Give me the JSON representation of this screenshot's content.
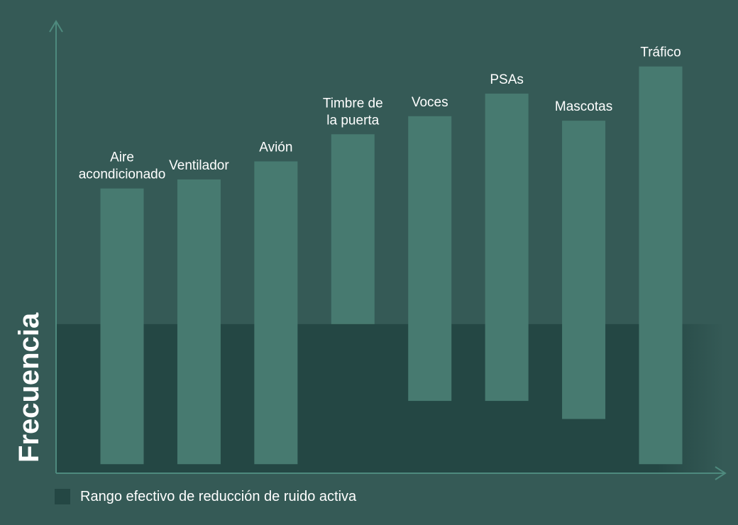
{
  "colors": {
    "background": "#355a56",
    "effective_band": "#244744",
    "bar": "#477a70",
    "axis": "#4e8a7e",
    "text": "#ffffff"
  },
  "legend": {
    "label": "Rango efectivo de reducción de ruido activa"
  },
  "chart_data": {
    "type": "bar",
    "subtype": "floating-range",
    "ylabel": "Frecuencia",
    "xlabel": "",
    "ylim": [
      0,
      100
    ],
    "grid": false,
    "legend_position": "bottom-left",
    "effective_range": {
      "from": 0,
      "to": 100,
      "ymax": 33
    },
    "categories": [
      [
        "Aire",
        "acondicionado"
      ],
      [
        "Ventilador"
      ],
      [
        "Avión"
      ],
      [
        "Timbre de",
        "la puerta"
      ],
      [
        "Voces"
      ],
      [
        "PSAs"
      ],
      [
        "Mascotas"
      ],
      [
        "Tráfico"
      ]
    ],
    "ranges": [
      [
        2,
        63
      ],
      [
        2,
        65
      ],
      [
        2,
        69
      ],
      [
        33,
        75
      ],
      [
        16,
        79
      ],
      [
        16,
        84
      ],
      [
        12,
        78
      ],
      [
        2,
        90
      ]
    ]
  }
}
